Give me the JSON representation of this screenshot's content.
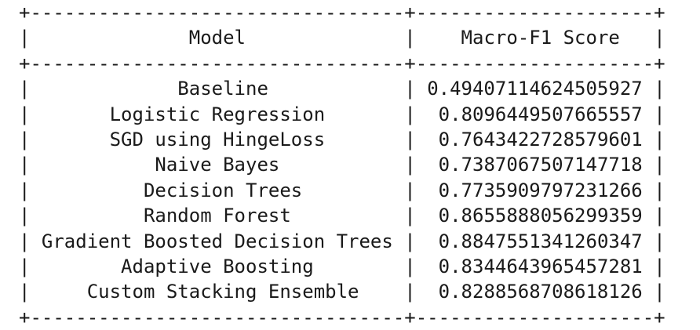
{
  "table": {
    "headers": [
      "Model",
      "Macro-F1 Score"
    ],
    "rows": [
      [
        "Baseline",
        "0.49407114624505927"
      ],
      [
        "Logistic Regression",
        "0.8096449507665557"
      ],
      [
        "SGD using HingeLoss",
        "0.7643422728579601"
      ],
      [
        "Naive Bayes",
        "0.7387067507147718"
      ],
      [
        "Decision Trees",
        "0.7735909797231266"
      ],
      [
        "Random Forest",
        "0.8655888056299359"
      ],
      [
        "Gradient Boosted Decision Trees",
        "0.8847551341260347"
      ],
      [
        "Adaptive Boosting",
        "0.8344643965457281"
      ],
      [
        "Custom Stacking Ensemble",
        "0.8288568708618126"
      ]
    ]
  }
}
